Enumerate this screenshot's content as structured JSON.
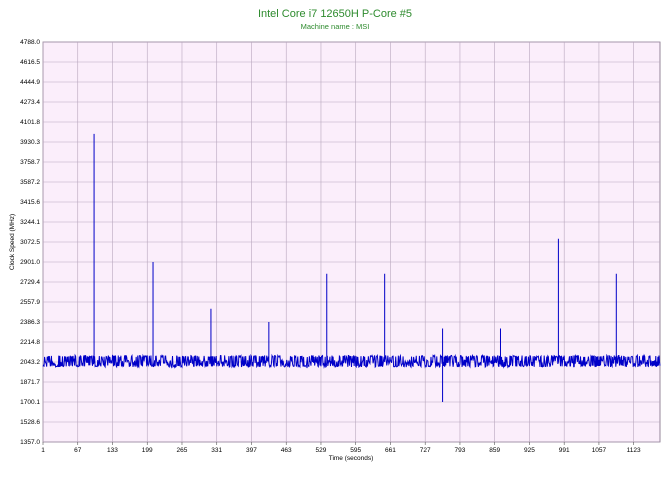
{
  "chart_data": {
    "type": "line",
    "title": "Intel Core i7 12650H P-Core #5",
    "subtitle": "Machine name : MSI",
    "xlabel": "Time (seconds)",
    "ylabel": "Clock Speed (MHz)",
    "xlim": [
      1,
      1173
    ],
    "ylim": [
      1357.0,
      4788.0
    ],
    "x_ticks": [
      "1",
      "67",
      "133",
      "199",
      "265",
      "331",
      "397",
      "463",
      "529",
      "595",
      "661",
      "727",
      "793",
      "859",
      "925",
      "991",
      "1057",
      "1123"
    ],
    "y_ticks": [
      "4788.0",
      "4616.5",
      "4444.9",
      "4273.4",
      "4101.8",
      "3930.3",
      "3758.7",
      "3587.2",
      "3415.6",
      "3244.1",
      "3072.5",
      "2901.0",
      "2729.4",
      "2557.9",
      "2386.3",
      "2214.8",
      "2043.2",
      "1871.7",
      "1700.1",
      "1528.6",
      "1357.0"
    ],
    "grid": true,
    "colors": {
      "line": "#0000c8",
      "plot_bg": "#fbeefb",
      "grid": "#b8a6bd",
      "title": "#2e8b2e"
    },
    "series": [
      {
        "baseline_mhz": 2043.2,
        "noise_band_mhz": [
          2000,
          2100
        ],
        "spikes": [
          {
            "x": 98,
            "y": 4000
          },
          {
            "x": 210,
            "y": 2901
          },
          {
            "x": 320,
            "y": 2500
          },
          {
            "x": 430,
            "y": 2386
          },
          {
            "x": 540,
            "y": 2800
          },
          {
            "x": 650,
            "y": 2800
          },
          {
            "x": 760,
            "y": 2330
          },
          {
            "x": 760,
            "y": 1700
          },
          {
            "x": 870,
            "y": 2330
          },
          {
            "x": 980,
            "y": 3100
          },
          {
            "x": 1090,
            "y": 2800
          }
        ]
      }
    ]
  }
}
